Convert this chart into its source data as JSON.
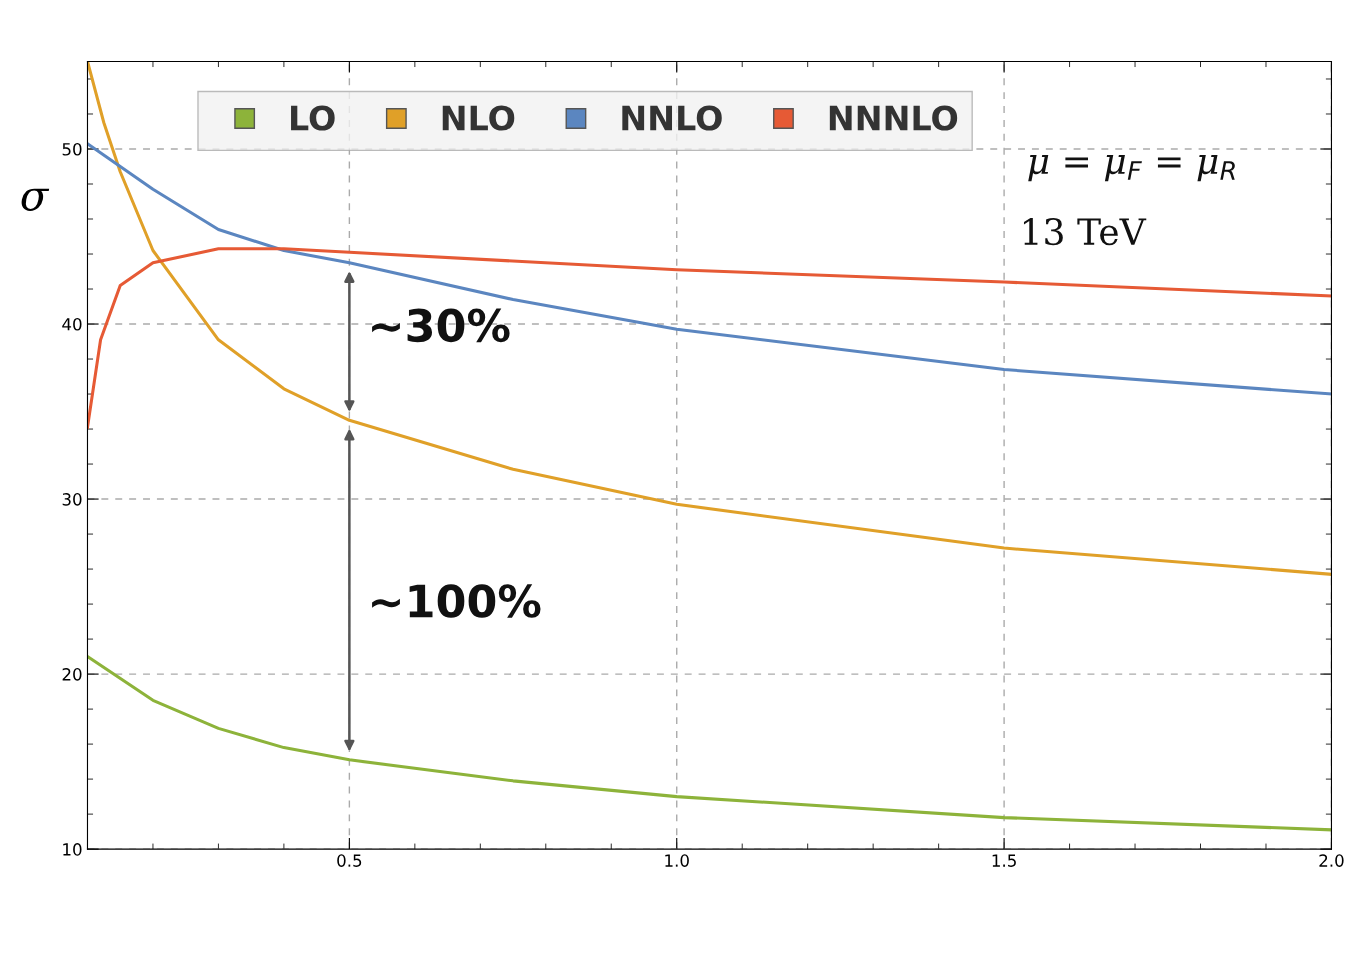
{
  "chart_data": {
    "type": "line",
    "ylabel": "σ",
    "xlim": [
      0.1,
      2.0
    ],
    "ylim": [
      10,
      55
    ],
    "xticks": [
      0.5,
      {
        "value": 1.0,
        "label": "1.0"
      },
      1.5,
      {
        "value": 2.0,
        "label": "2.0"
      }
    ],
    "yticks": [
      10,
      20,
      30,
      40,
      50
    ],
    "grid": true,
    "legend": "top",
    "line_style": "solid",
    "marker": "none",
    "series": [
      {
        "name": "LO",
        "color": "#8db33a",
        "x": [
          0.1,
          0.2,
          0.3,
          0.4,
          0.5,
          0.75,
          1.0,
          1.5,
          2.0
        ],
        "values": [
          21.0,
          18.5,
          16.9,
          15.8,
          15.1,
          13.9,
          13.0,
          11.8,
          11.1
        ]
      },
      {
        "name": "NLO",
        "color": "#e0a028",
        "x": [
          0.1,
          0.125,
          0.15,
          0.2,
          0.3,
          0.4,
          0.5,
          0.75,
          1.0,
          1.5,
          2.0
        ],
        "values": [
          55.0,
          51.5,
          48.7,
          44.2,
          39.1,
          36.3,
          34.5,
          31.7,
          29.7,
          27.2,
          25.7
        ]
      },
      {
        "name": "NNLO",
        "color": "#5b86c0",
        "x": [
          0.1,
          0.2,
          0.3,
          0.4,
          0.5,
          0.75,
          1.0,
          1.5,
          2.0
        ],
        "values": [
          50.3,
          47.7,
          45.4,
          44.2,
          43.5,
          41.4,
          39.7,
          37.4,
          36.0
        ]
      },
      {
        "name": "NNNLO",
        "color": "#e65a35",
        "x": [
          0.1,
          0.12,
          0.15,
          0.2,
          0.3,
          0.4,
          0.5,
          1.0,
          1.5,
          2.0
        ],
        "values": [
          34.1,
          39.1,
          42.2,
          43.5,
          44.3,
          44.3,
          44.1,
          43.1,
          42.4,
          41.6
        ]
      }
    ],
    "annotations": [
      "μ = μ$_{F}$ = μ$_{R}$",
      "13 TeV",
      "~30%",
      "~100%"
    ]
  }
}
